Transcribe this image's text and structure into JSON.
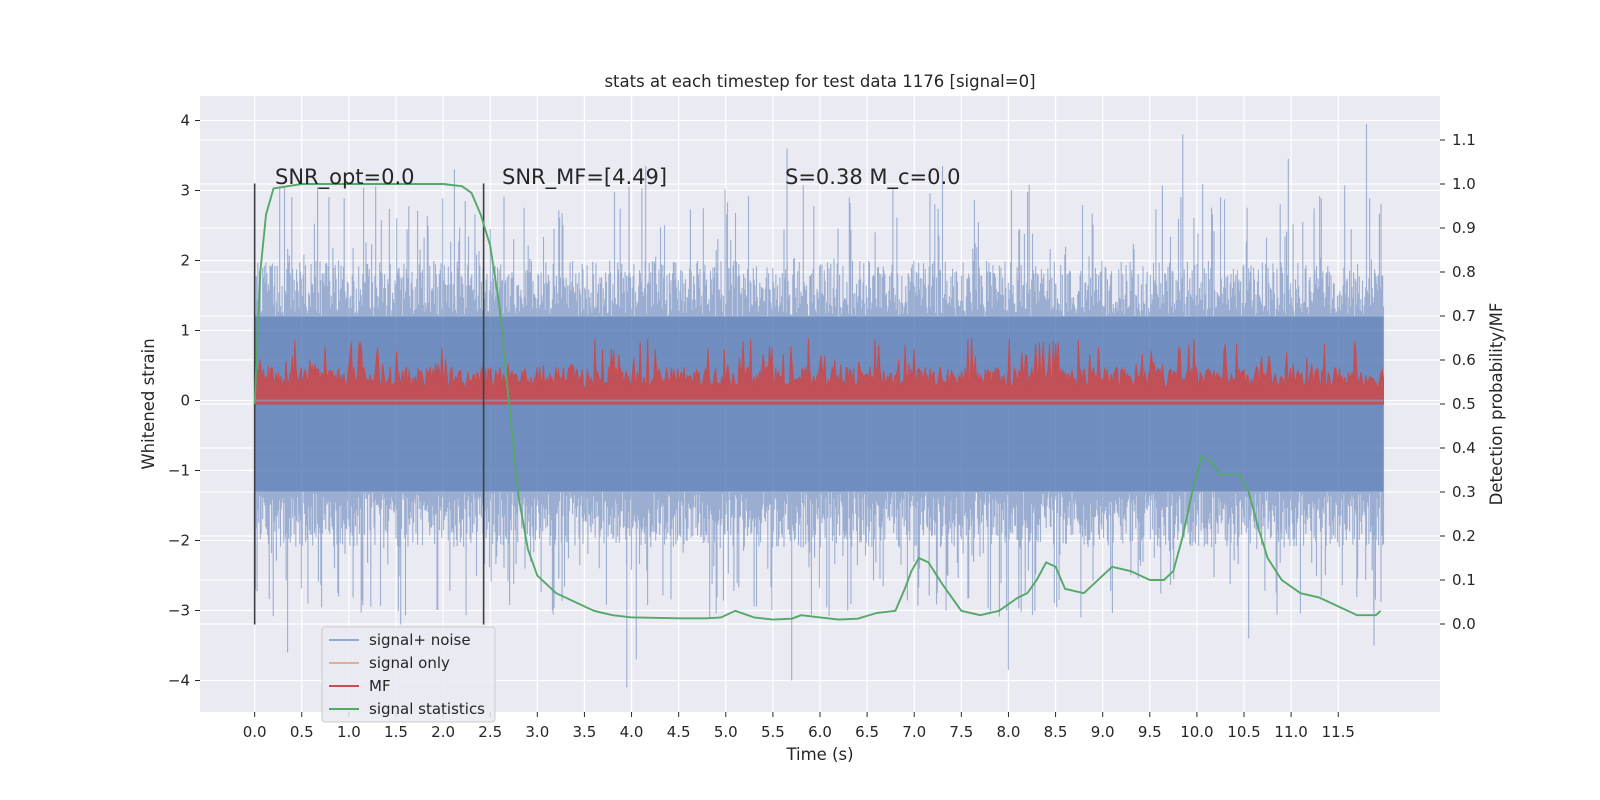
{
  "chart_data": {
    "type": "line",
    "title": "stats at each timestep for test data 1176 [signal=0]",
    "xlabel": "Time (s)",
    "ylabel_left": "Whitened strain",
    "ylabel_right": "Detection probability/MF",
    "xlim": [
      -0.58,
      12.58
    ],
    "ylim_left": [
      -4.45,
      4.35
    ],
    "ylim_right": [
      -0.2,
      1.2
    ],
    "xticks": [
      0.0,
      0.5,
      1.0,
      1.5,
      2.0,
      2.5,
      3.0,
      3.5,
      4.0,
      4.5,
      5.0,
      5.5,
      6.0,
      6.5,
      7.0,
      7.5,
      8.0,
      8.5,
      9.0,
      9.5,
      10.0,
      10.5,
      11.0,
      11.5
    ],
    "xtick_labels": [
      "0.0",
      "0.5",
      "1.0",
      "1.5",
      "2.0",
      "2.5",
      "3.0",
      "3.5",
      "4.0",
      "4.5",
      "5.0",
      "5.5",
      "6.0",
      "6.5",
      "7.0",
      "7.5",
      "8.0",
      "8.5",
      "9.0",
      "9.5",
      "10.0",
      "10.5",
      "11.0",
      "11.5"
    ],
    "yticks_left": [
      -4,
      -3,
      -2,
      -1,
      0,
      1,
      2,
      3,
      4
    ],
    "ytick_labels_left": [
      "−4",
      "−3",
      "−2",
      "−1",
      "0",
      "1",
      "2",
      "3",
      "4"
    ],
    "yticks_right": [
      0.0,
      0.1,
      0.2,
      0.3,
      0.4,
      0.5,
      0.6,
      0.7,
      0.8,
      0.9,
      1.0,
      1.1
    ],
    "ytick_labels_right": [
      "0.0",
      "0.1",
      "0.2",
      "0.3",
      "0.4",
      "0.5",
      "0.6",
      "0.7",
      "0.8",
      "0.9",
      "1.0",
      "1.1"
    ],
    "grid": true,
    "legend_position": "lower-left",
    "series": [
      {
        "name": "signal+ noise",
        "color": "#4c72b0",
        "axis": "left",
        "style": "noisy band",
        "typical_range": [
          -2.0,
          2.0
        ],
        "extremes": [
          -4.1,
          3.95
        ],
        "x_range": [
          0.0,
          11.98
        ]
      },
      {
        "name": "signal only",
        "color": "#dd8452",
        "axis": "left",
        "style": "flat"
      },
      {
        "name": "MF",
        "color": "#c44e52",
        "axis": "right",
        "style": "noisy band",
        "typical_range": [
          0.5,
          0.58
        ],
        "extremes": [
          0.5,
          0.65
        ],
        "x_range": [
          0.0,
          11.98
        ]
      },
      {
        "name": "signal statistics",
        "color": "#55a868",
        "axis": "right",
        "x": [
          0.0,
          0.06,
          0.12,
          0.2,
          0.5,
          1.0,
          1.5,
          2.0,
          2.2,
          2.3,
          2.4,
          2.5,
          2.6,
          2.7,
          2.8,
          2.9,
          3.0,
          3.2,
          3.4,
          3.6,
          3.8,
          4.0,
          4.5,
          4.8,
          4.95,
          5.1,
          5.3,
          5.5,
          5.7,
          5.8,
          6.0,
          6.2,
          6.4,
          6.6,
          6.8,
          6.9,
          6.97,
          7.05,
          7.15,
          7.3,
          7.5,
          7.7,
          7.9,
          8.1,
          8.2,
          8.3,
          8.4,
          8.5,
          8.6,
          8.8,
          9.0,
          9.1,
          9.3,
          9.5,
          9.65,
          9.75,
          9.85,
          9.95,
          10.05,
          10.15,
          10.25,
          10.35,
          10.45,
          10.55,
          10.65,
          10.75,
          10.9,
          11.1,
          11.3,
          11.5,
          11.7,
          11.9,
          11.95
        ],
        "y": [
          0.5,
          0.8,
          0.93,
          0.99,
          1.0,
          1.0,
          1.0,
          1.0,
          0.995,
          0.98,
          0.93,
          0.86,
          0.72,
          0.5,
          0.29,
          0.17,
          0.11,
          0.07,
          0.05,
          0.03,
          0.02,
          0.015,
          0.013,
          0.013,
          0.015,
          0.03,
          0.015,
          0.01,
          0.012,
          0.02,
          0.015,
          0.01,
          0.012,
          0.025,
          0.03,
          0.08,
          0.12,
          0.15,
          0.14,
          0.09,
          0.03,
          0.02,
          0.03,
          0.06,
          0.07,
          0.1,
          0.14,
          0.13,
          0.08,
          0.07,
          0.11,
          0.13,
          0.12,
          0.1,
          0.1,
          0.12,
          0.2,
          0.3,
          0.38,
          0.37,
          0.34,
          0.34,
          0.34,
          0.3,
          0.22,
          0.15,
          0.1,
          0.07,
          0.06,
          0.04,
          0.02,
          0.02,
          0.03
        ]
      }
    ],
    "vlines": [
      0.0,
      2.43
    ],
    "annotations": [
      {
        "text": "SNR_opt=0.0"
      },
      {
        "text": "SNR_MF=[4.49]"
      },
      {
        "text": "S=0.38   M_c=0.0"
      }
    ]
  }
}
